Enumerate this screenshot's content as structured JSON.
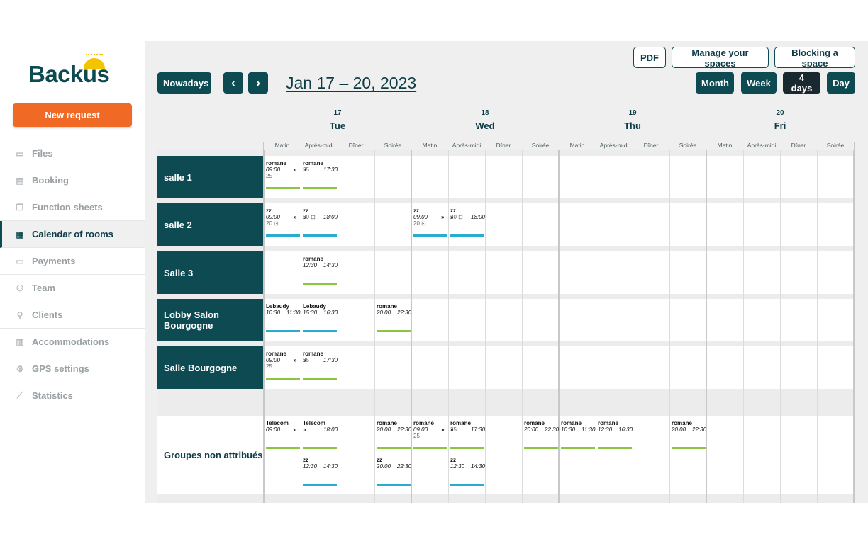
{
  "brand": {
    "name": "Backus",
    "sun_color": "#f5c400",
    "accent": "#f06a25",
    "primary": "#0d4a52"
  },
  "new_request": "New request",
  "nav": [
    {
      "label": "Files",
      "icon": "folder-icon"
    },
    {
      "label": "Booking",
      "icon": "booking-icon"
    },
    {
      "label": "Function sheets",
      "icon": "copy-icon"
    },
    {
      "label": "Calendar of rooms",
      "icon": "calendar-icon",
      "active": true
    },
    {
      "label": "Payments",
      "icon": "credit-card-icon"
    },
    {
      "label": "Team",
      "icon": "team-icon"
    },
    {
      "label": "Clients",
      "icon": "client-icon"
    },
    {
      "label": "Accommodations",
      "icon": "building-icon"
    },
    {
      "label": "GPS settings",
      "icon": "gear-icon"
    },
    {
      "label": "Statistics",
      "icon": "chart-icon"
    }
  ],
  "toolbar": {
    "pdf": "PDF",
    "manage": "Manage your spaces",
    "blocking": "Blocking a space",
    "nowadays": "Nowadays",
    "prev": "‹",
    "next": "›",
    "range": "Jan 17 – 20, 2023",
    "views": [
      "Month",
      "Week",
      "4 days",
      "Day"
    ],
    "selected_view": "4 days"
  },
  "days": [
    {
      "num": "17",
      "name": "Tue"
    },
    {
      "num": "18",
      "name": "Wed"
    },
    {
      "num": "19",
      "name": "Thu"
    },
    {
      "num": "20",
      "name": "Fri"
    }
  ],
  "slots": [
    "Matin",
    "Après-midi",
    "Dîner",
    "Soirée"
  ],
  "rows": [
    {
      "label": "salle 1",
      "events": [
        {
          "slot": 0,
          "title": "romane",
          "start": "09:00",
          "end": "",
          "arrow": true,
          "count": "25",
          "color": "#8cc63f"
        },
        {
          "slot": 1,
          "title": "romane",
          "start": "",
          "end": "17:30",
          "arrow": true,
          "count": "25",
          "color": "#8cc63f"
        }
      ]
    },
    {
      "label": "salle 2",
      "events": [
        {
          "slot": 0,
          "title": "zz",
          "start": "09:00",
          "end": "",
          "arrow": true,
          "count": "20 ⊡",
          "color": "#2aaccf"
        },
        {
          "slot": 1,
          "title": "zz",
          "start": "",
          "end": "18:00",
          "arrow": true,
          "count": "20 ⊡",
          "color": "#2aaccf"
        },
        {
          "slot": 4,
          "title": "zz",
          "start": "09:00",
          "end": "",
          "arrow": true,
          "count": "20 ⊡",
          "color": "#2aaccf"
        },
        {
          "slot": 5,
          "title": "zz",
          "start": "",
          "end": "18:00",
          "arrow": true,
          "count": "20 ⊡",
          "color": "#2aaccf"
        }
      ]
    },
    {
      "label": "Salle 3",
      "events": [
        {
          "slot": 1,
          "title": "romane",
          "start": "12:30",
          "end": "14:30",
          "count": "",
          "color": "#8cc63f"
        }
      ]
    },
    {
      "label": "Lobby Salon Bourgogne",
      "events": [
        {
          "slot": 0,
          "title": "Lebaudy",
          "start": "10:30",
          "end": "11:30",
          "count": "",
          "color": "#2aaccf"
        },
        {
          "slot": 1,
          "title": "Lebaudy",
          "start": "15:30",
          "end": "16:30",
          "count": "",
          "color": "#2aaccf"
        },
        {
          "slot": 3,
          "title": "romane",
          "start": "20:00",
          "end": "22:30",
          "count": "",
          "color": "#8cc63f"
        }
      ]
    },
    {
      "label": "Salle Bourgogne",
      "events": [
        {
          "slot": 0,
          "title": "romane",
          "start": "09:00",
          "end": "",
          "arrow": true,
          "count": "25",
          "color": "#8cc63f"
        },
        {
          "slot": 1,
          "title": "romane",
          "start": "",
          "end": "17:30",
          "arrow": true,
          "count": "25",
          "color": "#8cc63f"
        }
      ]
    }
  ],
  "unassigned": {
    "label": "Groupes non attribués",
    "events": [
      {
        "slot": 0,
        "title": "Telecom",
        "start": "09:00",
        "end": "",
        "arrow": true,
        "count": "",
        "color": "#8cc63f",
        "line": 0
      },
      {
        "slot": 1,
        "title": "Telecom",
        "start": "",
        "end": "18:00",
        "arrow": true,
        "count": "",
        "color": "#8cc63f",
        "line": 0
      },
      {
        "slot": 1,
        "title": "zz",
        "start": "12:30",
        "end": "14:30",
        "count": "",
        "color": "#2aaccf",
        "line": 1
      },
      {
        "slot": 3,
        "title": "romane",
        "start": "20:00",
        "end": "22:30",
        "count": "",
        "color": "#8cc63f",
        "line": 0
      },
      {
        "slot": 3,
        "title": "zz",
        "start": "20:00",
        "end": "22:30",
        "count": "",
        "color": "#2aaccf",
        "line": 1
      },
      {
        "slot": 4,
        "title": "romane",
        "start": "09:00",
        "end": "",
        "arrow": true,
        "count": "25",
        "color": "#8cc63f",
        "line": 0
      },
      {
        "slot": 5,
        "title": "romane",
        "start": "",
        "end": "17:30",
        "arrow": true,
        "count": "25",
        "color": "#8cc63f",
        "line": 0
      },
      {
        "slot": 5,
        "title": "zz",
        "start": "12:30",
        "end": "14:30",
        "count": "",
        "color": "#2aaccf",
        "line": 1
      },
      {
        "slot": 7,
        "title": "romane",
        "start": "20:00",
        "end": "22:30",
        "count": "",
        "color": "#8cc63f",
        "line": 0
      },
      {
        "slot": 8,
        "title": "romane",
        "start": "10:30",
        "end": "11:30",
        "count": "",
        "color": "#8cc63f",
        "line": 0
      },
      {
        "slot": 9,
        "title": "romane",
        "start": "12:30",
        "end": "16:30",
        "count": "",
        "color": "#8cc63f",
        "line": 0
      },
      {
        "slot": 11,
        "title": "romane",
        "start": "20:00",
        "end": "22:30",
        "count": "",
        "color": "#8cc63f",
        "line": 0
      }
    ]
  }
}
